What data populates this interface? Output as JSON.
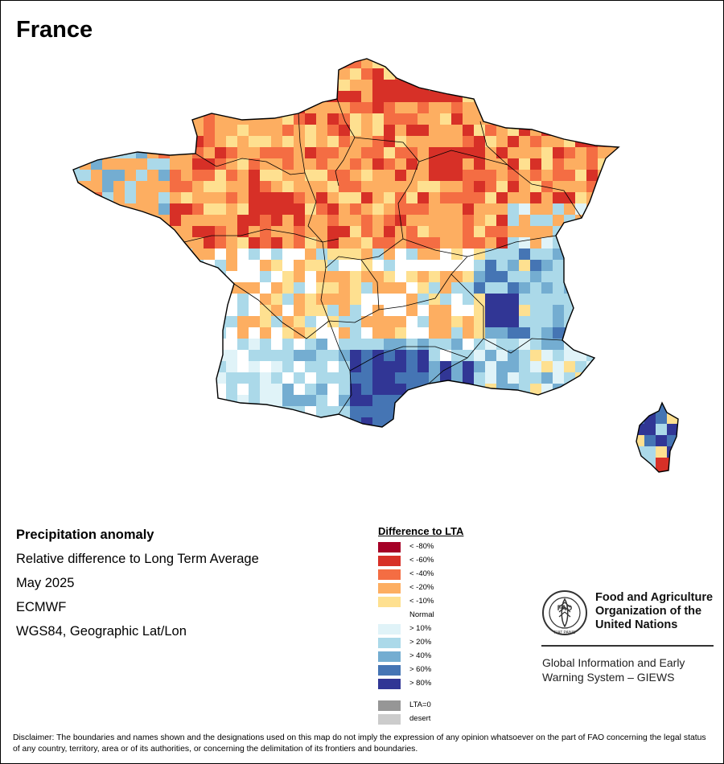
{
  "map": {
    "title": "France",
    "layer_name": "Precipitation anomaly",
    "subtitle": "Relative difference to Long Term Average",
    "period": "May 2025",
    "source": "ECMWF",
    "projection": "WGS84, Geographic Lat/Lon",
    "pattern_summary": {
      "north_west_and_centre": "< -20% to < -40%, locally < -60%",
      "south_east_and_south": "> 20% to > 80%",
      "corsica": "mostly > 60% to > 80%"
    }
  },
  "legend": {
    "title": "Difference to LTA",
    "items": [
      {
        "label": "< -80%",
        "color": "#a50026"
      },
      {
        "label": "< -60%",
        "color": "#d73027"
      },
      {
        "label": "< -40%",
        "color": "#f46d43"
      },
      {
        "label": "< -20%",
        "color": "#fdae61"
      },
      {
        "label": "< -10%",
        "color": "#fee090"
      },
      {
        "label": "Normal",
        "color": "#ffffff"
      },
      {
        "label": "> 10%",
        "color": "#e0f3f8"
      },
      {
        "label": "> 20%",
        "color": "#abd9e9"
      },
      {
        "label": "> 40%",
        "color": "#74add1"
      },
      {
        "label": "> 60%",
        "color": "#4575b4"
      },
      {
        "label": "> 80%",
        "color": "#313695"
      }
    ],
    "extra_items": [
      {
        "label": "LTA=0",
        "color": "#969696"
      },
      {
        "label": "desert",
        "color": "#cccccc"
      }
    ]
  },
  "branding": {
    "org_line1": "Food and Agriculture",
    "org_line2": "Organization of the",
    "org_line3": "United Nations",
    "logo_letters": "FAO",
    "logo_motto": "FIAT PANIS",
    "system_line1": "Global Information and Early",
    "system_line2": "Warning System – GIEWS"
  },
  "disclaimer": "Disclaimer: The boundaries and names shown and the designations used on this map do not imply the expression of any opinion whatsoever on the part of FAO concerning the legal status of any country, territory, area or of its authorities, or concerning the delimitation of its frontiers and boundaries."
}
